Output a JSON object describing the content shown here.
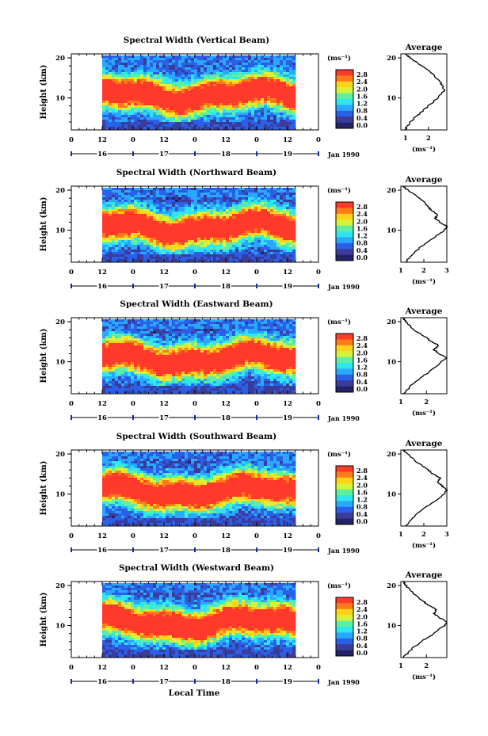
{
  "figure": {
    "x_axis_title": "Local Time",
    "date_label": "Jan 1990",
    "unit_label": "(ms⁻¹)",
    "y_axis_title": "Height (km)",
    "average_title": "Average",
    "hour_ticks": [
      "0",
      "12",
      "0",
      "12",
      "0",
      "12",
      "0",
      "12",
      "0"
    ],
    "day_ticks": [
      "16",
      "17",
      "18",
      "19"
    ],
    "height_ticks": [
      "20",
      "10"
    ],
    "colorbar_ticks": [
      "2.8",
      "2.4",
      "2.0",
      "1.6",
      "1.2",
      "0.8",
      "0.4",
      "0.0"
    ],
    "colorbar_colors": [
      "#ff3a2a",
      "#ff7a1a",
      "#ffd21a",
      "#d8f23a",
      "#5ef0a0",
      "#2ee6f0",
      "#2aa8ff",
      "#2a5fe8",
      "#3b3b9a",
      "#222266"
    ],
    "profile_color": "#000000"
  },
  "chart_data": [
    {
      "type": "heatmap",
      "title": "Spectral Width (Vertical Beam)",
      "ylabel": "Height (km)",
      "xlabel": "Local Time",
      "x_range_hours": [
        0,
        96
      ],
      "data_start_hour": 12,
      "data_end_hour": 86,
      "ylim": [
        2,
        21
      ],
      "colorbar_range": [
        0.0,
        2.8
      ],
      "jet_core_km": [
        8,
        14
      ],
      "average_profile": {
        "x_ticks": [
          "1",
          "2"
        ],
        "xlim": [
          0.8,
          2.8
        ],
        "heights_km": [
          2,
          4,
          6,
          8,
          10,
          12,
          13,
          14,
          16,
          18,
          20,
          21
        ],
        "values": [
          1.0,
          1.2,
          1.6,
          2.0,
          2.4,
          2.7,
          2.6,
          2.5,
          2.2,
          1.7,
          1.2,
          1.0
        ]
      }
    },
    {
      "type": "heatmap",
      "title": "Spectral Width (Northward Beam)",
      "ylabel": "Height (km)",
      "xlabel": "Local Time",
      "x_range_hours": [
        0,
        96
      ],
      "data_start_hour": 12,
      "data_end_hour": 86,
      "ylim": [
        2,
        21
      ],
      "colorbar_range": [
        0.0,
        2.8
      ],
      "jet_core_km": [
        8,
        14
      ],
      "average_profile": {
        "x_ticks": [
          "1",
          "2",
          "3"
        ],
        "xlim": [
          1.0,
          3.0
        ],
        "heights_km": [
          2,
          4,
          6,
          8,
          10,
          11,
          12,
          13,
          14,
          15,
          16,
          18,
          20,
          21
        ],
        "values": [
          1.2,
          1.5,
          1.9,
          2.4,
          2.9,
          3.0,
          2.7,
          2.5,
          2.6,
          2.3,
          2.2,
          1.8,
          1.3,
          1.1
        ]
      }
    },
    {
      "type": "heatmap",
      "title": "Spectral Width (Eastward Beam)",
      "ylabel": "Height (km)",
      "xlabel": "Local Time",
      "x_range_hours": [
        0,
        96
      ],
      "data_start_hour": 12,
      "data_end_hour": 86,
      "ylim": [
        2,
        21
      ],
      "colorbar_range": [
        0.0,
        2.8
      ],
      "jet_core_km": [
        8,
        14
      ],
      "average_profile": {
        "x_ticks": [
          "1",
          "2"
        ],
        "xlim": [
          1.0,
          2.8
        ],
        "heights_km": [
          2,
          4,
          6,
          8,
          10,
          11,
          12,
          13,
          14,
          15,
          16,
          18,
          20,
          21
        ],
        "values": [
          1.1,
          1.4,
          1.8,
          2.2,
          2.6,
          2.8,
          2.5,
          2.3,
          2.5,
          2.2,
          2.0,
          1.5,
          1.2,
          1.1
        ]
      }
    },
    {
      "type": "heatmap",
      "title": "Spectral Width (Southward Beam)",
      "ylabel": "Height (km)",
      "xlabel": "Local Time",
      "x_range_hours": [
        0,
        96
      ],
      "data_start_hour": 12,
      "data_end_hour": 86,
      "ylim": [
        2,
        21
      ],
      "colorbar_range": [
        0.0,
        2.8
      ],
      "jet_core_km": [
        8,
        14
      ],
      "average_profile": {
        "x_ticks": [
          "1",
          "2",
          "3"
        ],
        "xlim": [
          1.0,
          3.0
        ],
        "heights_km": [
          2,
          4,
          6,
          8,
          10,
          11,
          12,
          13,
          14,
          15,
          16,
          18,
          20,
          21
        ],
        "values": [
          1.2,
          1.5,
          1.9,
          2.4,
          2.9,
          3.0,
          2.8,
          2.6,
          2.7,
          2.4,
          2.2,
          1.7,
          1.3,
          1.1
        ]
      }
    },
    {
      "type": "heatmap",
      "title": "Spectral Width (Westward Beam)",
      "ylabel": "Height (km)",
      "xlabel": "Local Time",
      "x_range_hours": [
        0,
        96
      ],
      "data_start_hour": 12,
      "data_end_hour": 86,
      "ylim": [
        2,
        21
      ],
      "colorbar_range": [
        0.0,
        2.8
      ],
      "jet_core_km": [
        8,
        14
      ],
      "average_profile": {
        "x_ticks": [
          "1",
          "2"
        ],
        "xlim": [
          1.0,
          2.8
        ],
        "heights_km": [
          2,
          4,
          6,
          8,
          10,
          11,
          12,
          13,
          14,
          15,
          16,
          18,
          20,
          21
        ],
        "values": [
          1.1,
          1.4,
          1.8,
          2.3,
          2.7,
          2.8,
          2.5,
          2.3,
          2.4,
          2.1,
          1.9,
          1.5,
          1.2,
          1.1
        ]
      }
    }
  ]
}
